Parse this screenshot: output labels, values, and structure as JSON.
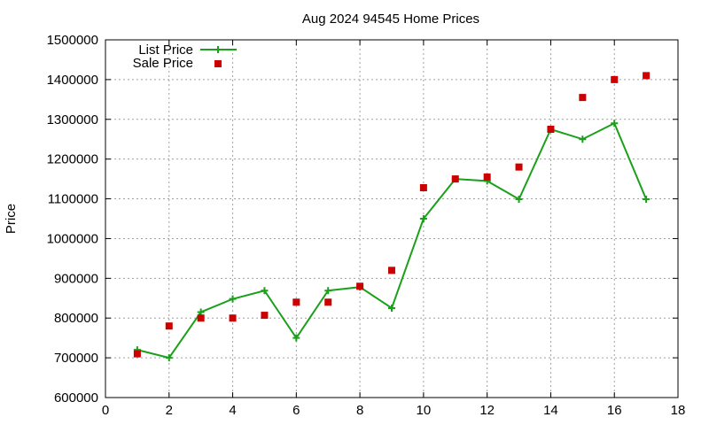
{
  "chart_data": {
    "type": "line",
    "title": "Aug 2024 94545 Home Prices",
    "xlabel": "",
    "ylabel": "Price",
    "xlim": [
      0,
      18
    ],
    "ylim": [
      600000,
      1500000
    ],
    "x_ticks": [
      "0",
      "2",
      "4",
      "6",
      "8",
      "10",
      "12",
      "14",
      "16",
      "18"
    ],
    "y_ticks": [
      "600000",
      "700000",
      "800000",
      "900000",
      "1000000",
      "1100000",
      "1200000",
      "1300000",
      "1400000",
      "1500000"
    ],
    "grid": true,
    "legend_position": "top-left",
    "series": [
      {
        "name": "List Price",
        "style": "line-with-plus-markers",
        "color": "#1aa01a",
        "x": [
          1,
          2,
          3,
          4,
          5,
          6,
          7,
          8,
          9,
          10,
          11,
          12,
          13,
          14,
          15,
          16,
          17
        ],
        "values": [
          720000,
          700000,
          815000,
          848000,
          869000,
          750000,
          869000,
          878000,
          825000,
          1050000,
          1150000,
          1145000,
          1099000,
          1275000,
          1250000,
          1290000,
          1099000
        ]
      },
      {
        "name": "Sale Price",
        "style": "square-markers",
        "color": "#cc0000",
        "x": [
          1,
          2,
          3,
          4,
          5,
          6,
          7,
          8,
          9,
          10,
          11,
          12,
          13,
          14,
          15,
          16,
          17
        ],
        "values": [
          710000,
          780000,
          800000,
          800000,
          807000,
          840000,
          840000,
          880000,
          920000,
          1128000,
          1150000,
          1155000,
          1180000,
          1275000,
          1355000,
          1400000,
          1410000
        ]
      }
    ]
  }
}
